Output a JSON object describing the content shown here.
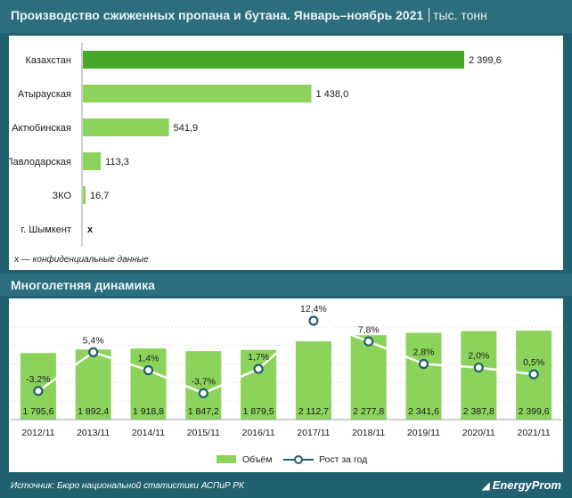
{
  "header": {
    "title": "Производство сжиженных пропана и бутана. Январь–ноябрь 2021",
    "unit": "тыс. тонн"
  },
  "colors": {
    "background": "#21606f",
    "header": "#2d6e7e",
    "bar_dark": "#46a92a",
    "bar_light": "#8cd35b",
    "line": "#ffffff",
    "text": "#1a1a1a"
  },
  "chart_data": [
    {
      "type": "bar",
      "orientation": "horizontal",
      "title": "Производство сжиженных пропана и бутана. Январь–ноябрь 2021",
      "unit": "тыс. тонн",
      "categories": [
        "Казахстан",
        "Атырауская",
        "Актюбинская",
        "Павлодарская",
        "ЗКО",
        "г. Шымкент"
      ],
      "values": [
        2399.6,
        1438.0,
        541.9,
        113.3,
        16.7,
        null
      ],
      "labels": [
        "2 399,6",
        "1 438,0",
        "541,9",
        "113,3",
        "16,7",
        "x"
      ],
      "note": "x — конфиденциальные данные"
    },
    {
      "type": "bar+line",
      "title": "Многолетняя динамика",
      "categories": [
        "2012/11",
        "2013/11",
        "2014/11",
        "2015/11",
        "2016/11",
        "2017/11",
        "2018/11",
        "2019/11",
        "2020/11",
        "2021/11"
      ],
      "series": [
        {
          "name": "Объём",
          "type": "bar",
          "values": [
            1795.6,
            1892.4,
            1918.8,
            1847.2,
            1879.5,
            2112.7,
            2277.8,
            2341.6,
            2387.8,
            2399.6
          ],
          "labels": [
            "1 795,6",
            "1 892,4",
            "1 918,8",
            "1 847,2",
            "1 879,5",
            "2 112,7",
            "2 277,8",
            "2 341,6",
            "2 387,8",
            "2 399,6"
          ]
        },
        {
          "name": "Рост за год",
          "type": "line",
          "values": [
            -3.2,
            5.4,
            1.4,
            -3.7,
            1.7,
            12.4,
            7.8,
            2.8,
            2.0,
            0.5
          ],
          "labels": [
            "-3,2%",
            "5,4%",
            "1,4%",
            "-3,7%",
            "1,7%",
            "12,4%",
            "7,8%",
            "2,8%",
            "2,0%",
            "0,5%"
          ]
        }
      ],
      "legend": "bottom"
    }
  ],
  "footer": {
    "source": "Источник: Бюро национальной статистики АСПиР РК",
    "brand": "EnergyProm",
    "brand_icon": "energyprom-logo-icon"
  }
}
